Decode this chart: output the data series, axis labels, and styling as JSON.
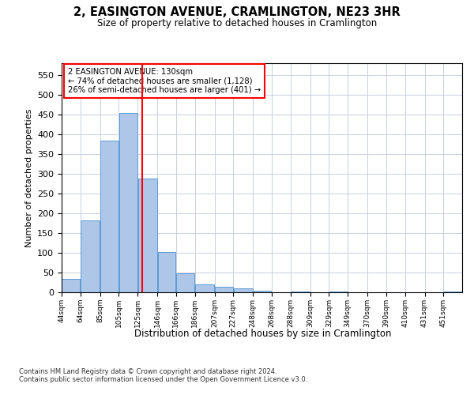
{
  "title": "2, EASINGTON AVENUE, CRAMLINGTON, NE23 3HR",
  "subtitle": "Size of property relative to detached houses in Cramlington",
  "xlabel": "Distribution of detached houses by size in Cramlington",
  "ylabel": "Number of detached properties",
  "footer_line1": "Contains HM Land Registry data © Crown copyright and database right 2024.",
  "footer_line2": "Contains public sector information licensed under the Open Government Licence v3.0.",
  "bar_color": "#aec6e8",
  "bar_edge_color": "#5b9bd5",
  "grid_color": "#c8d0e0",
  "vline_color": "red",
  "vline_x": 130,
  "annotation_title": "2 EASINGTON AVENUE: 130sqm",
  "annotation_line2": "← 74% of detached houses are smaller (1,128)",
  "annotation_line3": "26% of semi-detached houses are larger (401) →",
  "annotation_box_color": "white",
  "annotation_box_edge": "red",
  "categories": [
    "44sqm",
    "64sqm",
    "85sqm",
    "105sqm",
    "125sqm",
    "146sqm",
    "166sqm",
    "186sqm",
    "207sqm",
    "227sqm",
    "248sqm",
    "268sqm",
    "288sqm",
    "309sqm",
    "329sqm",
    "349sqm",
    "370sqm",
    "390sqm",
    "410sqm",
    "431sqm",
    "451sqm"
  ],
  "bar_widths_sqm": [
    20,
    21,
    20,
    20,
    21,
    20,
    20,
    21,
    20,
    21,
    20,
    20,
    21,
    20,
    20,
    21,
    20,
    20,
    21,
    20,
    20
  ],
  "values": [
    35,
    183,
    385,
    455,
    288,
    103,
    48,
    20,
    15,
    10,
    5,
    0,
    3,
    0,
    3,
    0,
    0,
    0,
    0,
    0,
    3
  ],
  "ylim": [
    0,
    580
  ],
  "yticks": [
    0,
    50,
    100,
    150,
    200,
    250,
    300,
    350,
    400,
    450,
    500,
    550
  ],
  "bar_left_edges": [
    44,
    64,
    85,
    105,
    125,
    146,
    166,
    186,
    207,
    227,
    248,
    268,
    288,
    309,
    329,
    349,
    370,
    390,
    410,
    431,
    451
  ],
  "xlim": [
    44,
    471
  ]
}
